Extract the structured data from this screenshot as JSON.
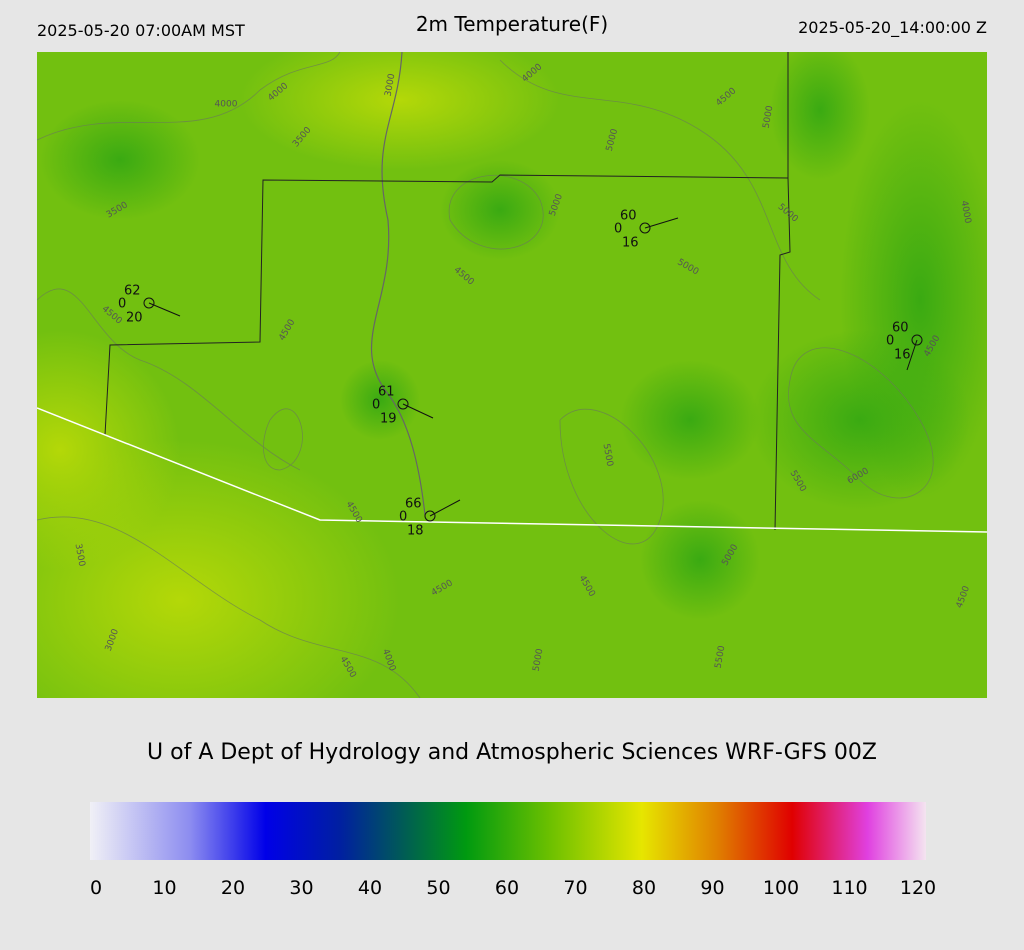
{
  "header": {
    "left": "2025-05-20 07:00AM MST",
    "title": "2m Temperature(F)",
    "right": "2025-05-20_14:00:00 Z"
  },
  "stations": [
    {
      "temperature": 62,
      "value": 0,
      "dewpoint": 20
    },
    {
      "temperature": 60,
      "value": 0,
      "dewpoint": 16
    },
    {
      "temperature": 60,
      "value": 0,
      "dewpoint": 16
    },
    {
      "temperature": 61,
      "value": 0,
      "dewpoint": 19
    },
    {
      "temperature": 66,
      "value": 0,
      "dewpoint": 18
    }
  ],
  "contour_labels": [
    4000,
    4000,
    3500,
    3000,
    4000,
    4500,
    5000,
    5000,
    5000,
    5000,
    5000,
    4500,
    3500,
    4500,
    4500,
    4000,
    4500,
    5500,
    5500,
    6000,
    4500,
    3500,
    5000,
    4500,
    4500,
    3000,
    4500,
    4000,
    5000,
    5500,
    4500
  ],
  "footer": "U of A Dept of Hydrology and Atmospheric Sciences WRF-GFS 00Z",
  "colorbar": {
    "lim": [
      0,
      120
    ],
    "ticks": [
      0,
      10,
      20,
      30,
      40,
      50,
      60,
      70,
      80,
      90,
      100,
      110,
      120
    ]
  }
}
